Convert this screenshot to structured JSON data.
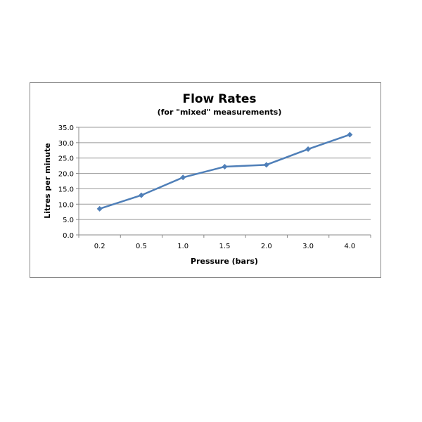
{
  "chart_data": {
    "type": "line",
    "title": "Flow Rates",
    "subtitle": "(for \"mixed\" measurements)",
    "xlabel": "Pressure (bars)",
    "ylabel": "Litres per minute",
    "categories": [
      "0.2",
      "0.5",
      "1.0",
      "1.5",
      "2.0",
      "3.0",
      "4.0"
    ],
    "values": [
      8.5,
      12.9,
      18.7,
      22.2,
      22.8,
      27.9,
      32.6
    ],
    "ylim": [
      0,
      35
    ],
    "yticks": [
      "0.0",
      "5.0",
      "10.0",
      "15.0",
      "20.0",
      "25.0",
      "30.0",
      "35.0"
    ],
    "grid": true,
    "legend": "none",
    "line_color": "#4f7fb8",
    "marker": "diamond"
  }
}
